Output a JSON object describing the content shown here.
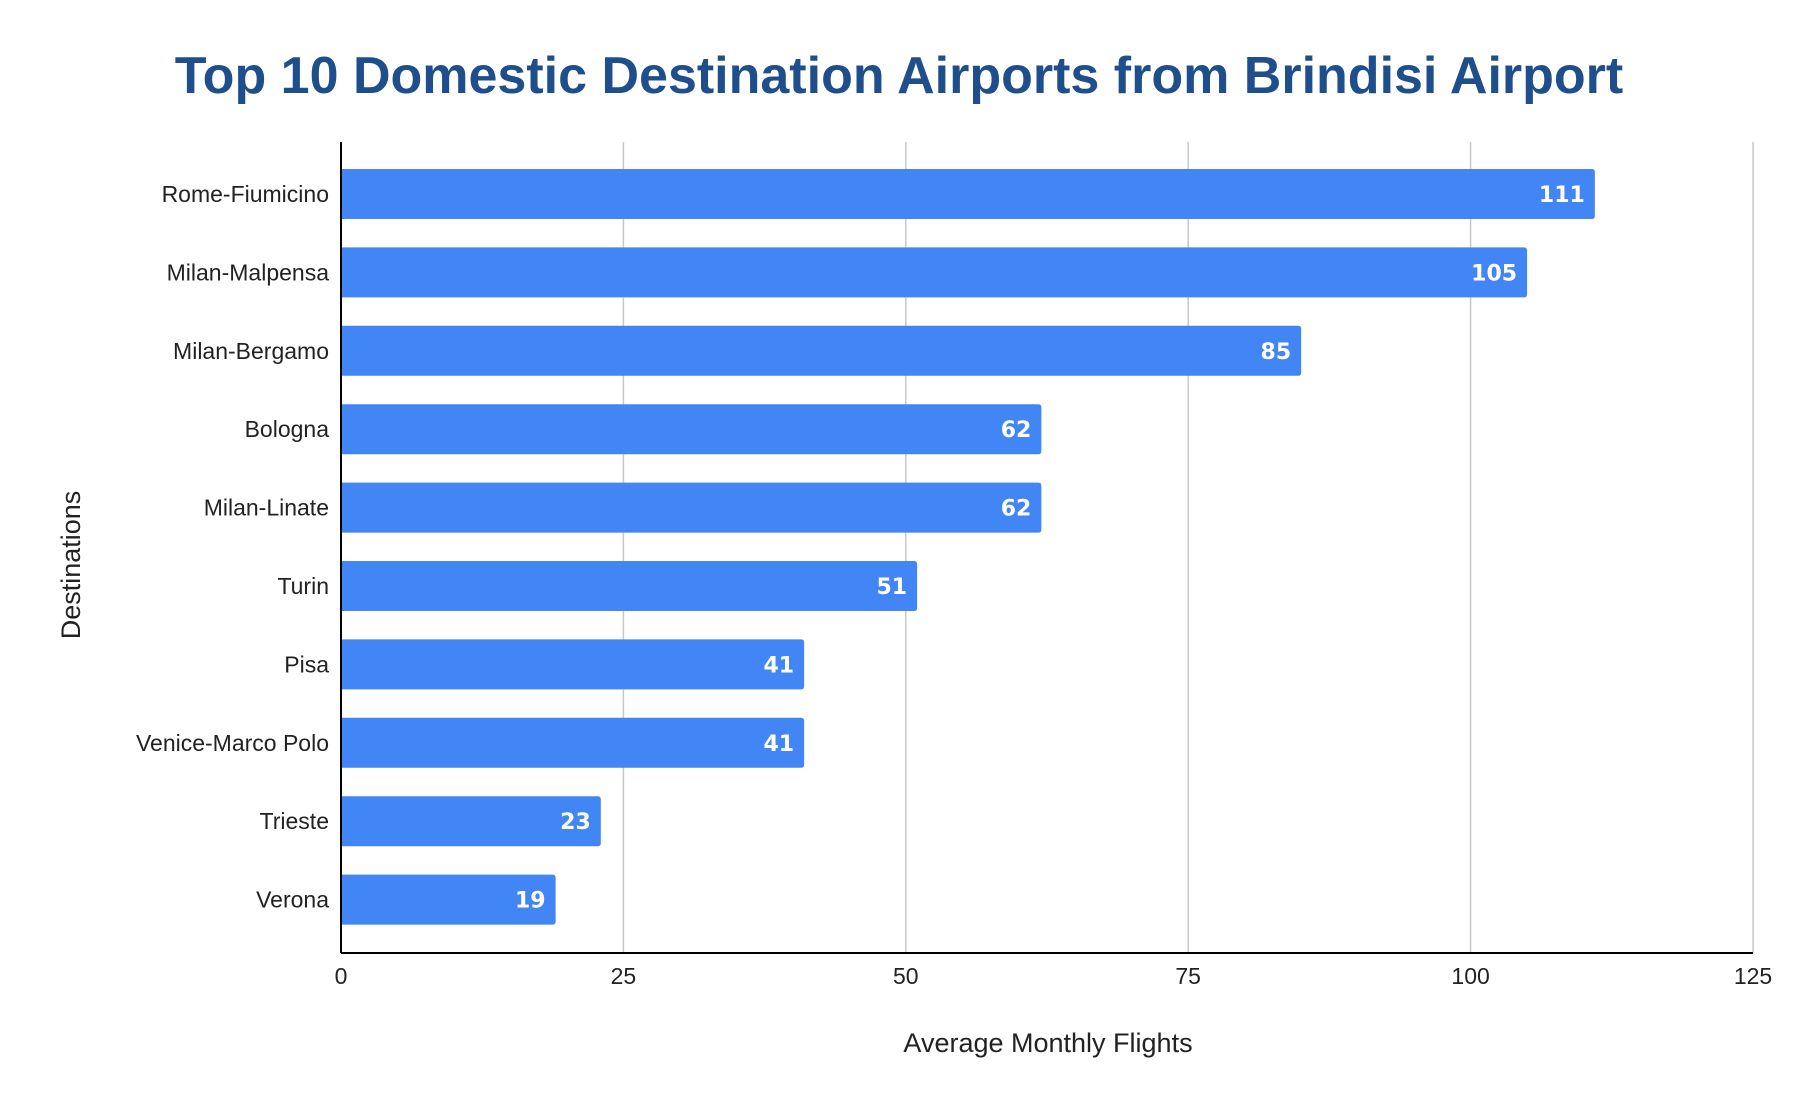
{
  "chart_data": {
    "type": "bar",
    "orientation": "horizontal",
    "title": "Top 10 Domestic Destination Airports from Brindisi Airport",
    "xlabel": "Average Monthly Flights",
    "ylabel": "Destinations",
    "categories": [
      "Rome-Fiumicino",
      "Milan-Malpensa",
      "Milan-Bergamo",
      "Bologna",
      "Milan-Linate",
      "Turin",
      "Pisa",
      "Venice-Marco Polo",
      "Trieste",
      "Verona"
    ],
    "values": [
      111,
      105,
      85,
      62,
      62,
      51,
      41,
      41,
      23,
      19
    ],
    "xlim": [
      0,
      125
    ],
    "xticks": [
      0,
      25,
      50,
      75,
      100,
      125
    ],
    "xtick_labels": [
      "0",
      "25",
      "50",
      "75",
      "100",
      "125"
    ],
    "grid": "vertical",
    "data_labels": true,
    "legend": "none"
  },
  "colors": {
    "bar": "#4285f4",
    "title": "#1f4e8c",
    "grid": "#c8c8c8",
    "axis": "#000000",
    "data_label": "#ffffff"
  }
}
